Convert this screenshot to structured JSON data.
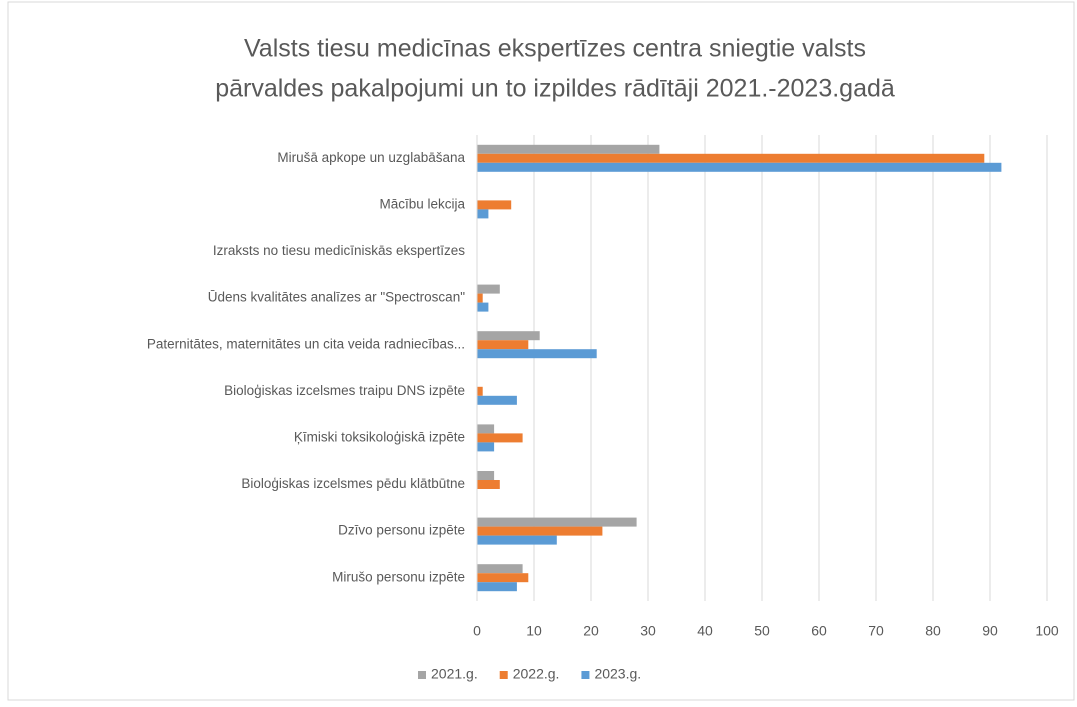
{
  "chart_data": {
    "type": "barh",
    "title": [
      "Valsts tiesu medicīnas ekspertīzes centra sniegtie valsts",
      "pārvaldes pakalpojumi  un to izpildes rādītāji 2021.-2023.gadā"
    ],
    "categories": [
      "Mirušā apkope un uzglabāšana",
      "Mācību lekcija",
      "Izraksts no tiesu medicīniskās ekspertīzes",
      "Ūdens kvalitātes analīzes ar \"Spectroscan\"",
      "Paternitātes, maternitātes un cita veida radniecības...",
      "Bioloģiskas izcelsmes traipu DNS izpēte",
      "Ķīmiski toksikoloģiskā izpēte",
      "Bioloģiskas izcelsmes pēdu klātbūtne",
      "Dzīvo personu izpēte",
      "Mirušo personu izpēte"
    ],
    "series": [
      {
        "name": "2021.g.",
        "color": "#a5a5a5",
        "values": [
          32,
          0,
          0,
          4,
          11,
          0,
          3,
          3,
          28,
          8
        ]
      },
      {
        "name": "2022.g.",
        "color": "#ed7d31",
        "values": [
          89,
          6,
          0,
          1,
          9,
          1,
          8,
          4,
          22,
          9
        ]
      },
      {
        "name": "2023.g.",
        "color": "#5b9bd5",
        "values": [
          92,
          2,
          0,
          2,
          21,
          7,
          3,
          0,
          14,
          7
        ]
      }
    ],
    "xlim": [
      0,
      100
    ],
    "xticks": [
      0,
      10,
      20,
      30,
      40,
      50,
      60,
      70,
      80,
      90,
      100
    ],
    "grid": true,
    "legend": "bottom"
  }
}
